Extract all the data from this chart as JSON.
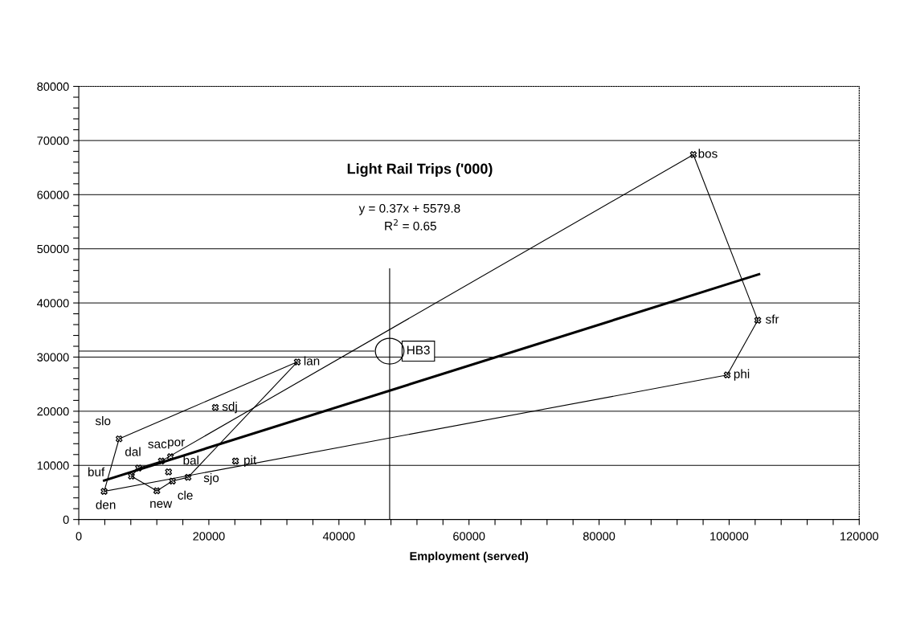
{
  "chart_data": {
    "type": "scatter",
    "title": "Light Rail Trips ('000)",
    "xlabel": "Employment (served)",
    "xlim": [
      0,
      120000
    ],
    "ylim": [
      0,
      80000
    ],
    "xticks": [
      0,
      {
        "value": 4000,
        "label": null
      },
      {
        "value": 8000,
        "label": null
      },
      {
        "value": 12000,
        "label": null
      },
      {
        "value": 16000,
        "label": null
      },
      20000,
      {
        "value": 24000,
        "label": null
      },
      {
        "value": 28000,
        "label": null
      },
      {
        "value": 32000,
        "label": null
      },
      {
        "value": 36000,
        "label": null
      },
      40000,
      {
        "value": 44000,
        "label": null
      },
      {
        "value": 48000,
        "label": null
      },
      {
        "value": 52000,
        "label": null
      },
      {
        "value": 56000,
        "label": null
      },
      60000,
      {
        "value": 64000,
        "label": null
      },
      {
        "value": 68000,
        "label": null
      },
      {
        "value": 72000,
        "label": null
      },
      {
        "value": 76000,
        "label": null
      },
      80000,
      {
        "value": 84000,
        "label": null
      },
      {
        "value": 88000,
        "label": null
      },
      {
        "value": 92000,
        "label": null
      },
      {
        "value": 96000,
        "label": null
      },
      100000,
      {
        "value": 104000,
        "label": null
      },
      {
        "value": 108000,
        "label": null
      },
      {
        "value": 112000,
        "label": null
      },
      {
        "value": 116000,
        "label": null
      },
      120000
    ],
    "yticks": [
      0,
      {
        "value": 2000,
        "label": null
      },
      {
        "value": 4000,
        "label": null
      },
      {
        "value": 6000,
        "label": null
      },
      {
        "value": 8000,
        "label": null
      },
      10000,
      {
        "value": 12000,
        "label": null
      },
      {
        "value": 14000,
        "label": null
      },
      {
        "value": 16000,
        "label": null
      },
      {
        "value": 18000,
        "label": null
      },
      20000,
      {
        "value": 22000,
        "label": null
      },
      {
        "value": 24000,
        "label": null
      },
      {
        "value": 26000,
        "label": null
      },
      {
        "value": 28000,
        "label": null
      },
      30000,
      {
        "value": 32000,
        "label": null
      },
      {
        "value": 34000,
        "label": null
      },
      {
        "value": 36000,
        "label": null
      },
      {
        "value": 38000,
        "label": null
      },
      40000,
      {
        "value": 42000,
        "label": null
      },
      {
        "value": 44000,
        "label": null
      },
      {
        "value": 46000,
        "label": null
      },
      {
        "value": 48000,
        "label": null
      },
      50000,
      {
        "value": 52000,
        "label": null
      },
      {
        "value": 54000,
        "label": null
      },
      {
        "value": 56000,
        "label": null
      },
      {
        "value": 58000,
        "label": null
      },
      60000,
      {
        "value": 62000,
        "label": null
      },
      {
        "value": 64000,
        "label": null
      },
      {
        "value": 66000,
        "label": null
      },
      {
        "value": 68000,
        "label": null
      },
      70000,
      {
        "value": 72000,
        "label": null
      },
      {
        "value": 74000,
        "label": null
      },
      {
        "value": 76000,
        "label": null
      },
      {
        "value": 78000,
        "label": null
      },
      80000
    ],
    "grid": "y",
    "marker": "cross",
    "series": [
      {
        "color": "#000000",
        "x": [
          94500,
          104400,
          99700,
          33600,
          21000,
          24100,
          6200,
          9200,
          12700,
          14100,
          13800,
          8100,
          3900,
          12000,
          14400,
          16800
        ],
        "values": [
          67400,
          36800,
          26700,
          29100,
          20700,
          10800,
          14900,
          9500,
          10800,
          11600,
          8800,
          8000,
          5200,
          5300,
          7100,
          7800
        ]
      },
      {
        "type": "line",
        "marker": "none",
        "color": "#000000",
        "x": [
          3900,
          104600
        ],
        "values": [
          7200,
          45300
        ]
      },
      {
        "type": "line",
        "marker": "none",
        "color": "#000000",
        "x": [
          3900,
          6200,
          33600
        ],
        "values": [
          5200,
          14900,
          29100
        ]
      },
      {
        "type": "line",
        "marker": "none",
        "color": "#000000",
        "x": [
          8100,
          12000,
          14400,
          16800,
          33600
        ],
        "values": [
          8000,
          5300,
          7100,
          7800,
          29100
        ]
      },
      {
        "type": "line",
        "marker": "none",
        "color": "#000000",
        "x": [
          8100,
          9200,
          12700,
          94500,
          104400
        ],
        "values": [
          8000,
          9500,
          10800,
          67400,
          36800
        ]
      },
      {
        "type": "line",
        "marker": "none",
        "color": "#000000",
        "x": [
          3900,
          99700,
          104400
        ],
        "values": [
          5200,
          26700,
          36800
        ]
      },
      {
        "type": "line",
        "marker": "none",
        "color": "#000000",
        "x": [
          47800,
          47800
        ],
        "values": [
          0,
          46300
        ]
      },
      {
        "type": "line",
        "marker": "none",
        "color": "#000000",
        "x": [
          0,
          45400
        ],
        "values": [
          31100,
          31100
        ]
      }
    ],
    "annotations": [
      {
        "text": "bos",
        "x": 94500,
        "y": 67400
      },
      {
        "text": "sfr",
        "x": 104400,
        "y": 36800
      },
      {
        "text": "phi",
        "x": 99700,
        "y": 26700
      },
      {
        "text": "lan",
        "x": 33600,
        "y": 29100
      },
      {
        "text": "sdj",
        "x": 21000,
        "y": 20700
      },
      {
        "text": "pit",
        "x": 24100,
        "y": 10800
      },
      {
        "text": "slo",
        "x": 6200,
        "y": 14900
      },
      {
        "text": "dal",
        "x": 9200,
        "y": 9500
      },
      {
        "text": "sac",
        "x": 12700,
        "y": 10800
      },
      {
        "text": "por",
        "x": 14100,
        "y": 11600
      },
      {
        "text": "bal",
        "x": 13800,
        "y": 8800
      },
      {
        "text": "buf",
        "x": 8100,
        "y": 8000
      },
      {
        "text": "den",
        "x": 3900,
        "y": 5200
      },
      {
        "text": "new",
        "x": 12000,
        "y": 5300
      },
      {
        "text": "cle",
        "x": 14400,
        "y": 7100
      },
      {
        "text": "sjo",
        "x": 16800,
        "y": 7800
      },
      {
        "text": "HB3",
        "x": 47800,
        "y": 31100
      },
      "y = 0.37x + 5579.8",
      "R$^{2}$ = 0.65"
    ]
  }
}
